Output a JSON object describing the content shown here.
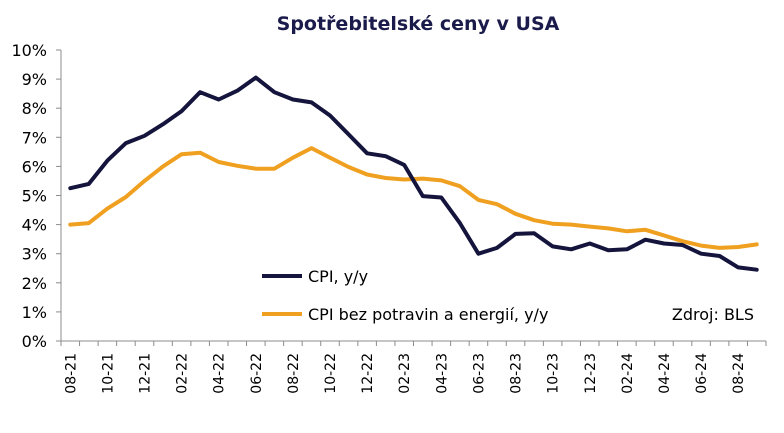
{
  "chart_data": {
    "type": "line",
    "title": "Spotřebitelské ceny v USA",
    "source": "Zdroj: BLS",
    "xlabel": "",
    "ylabel": "",
    "ylim": [
      0,
      10
    ],
    "yticks": [
      "0%",
      "1%",
      "2%",
      "3%",
      "4%",
      "5%",
      "6%",
      "7%",
      "8%",
      "9%",
      "10%"
    ],
    "x": [
      "08-21",
      "09-21",
      "10-21",
      "11-21",
      "12-21",
      "01-22",
      "02-22",
      "03-22",
      "04-22",
      "05-22",
      "06-22",
      "07-22",
      "08-22",
      "09-22",
      "10-22",
      "11-22",
      "12-22",
      "01-23",
      "02-23",
      "03-23",
      "04-23",
      "05-23",
      "06-23",
      "07-23",
      "08-23",
      "09-23",
      "10-23",
      "11-23",
      "12-23",
      "01-24",
      "02-24",
      "03-24",
      "04-24",
      "05-24",
      "06-24",
      "07-24",
      "08-24",
      "09-24"
    ],
    "xtick_labels": [
      "08-21",
      "10-21",
      "12-21",
      "02-22",
      "04-22",
      "06-22",
      "08-22",
      "10-22",
      "12-22",
      "02-23",
      "04-23",
      "06-23",
      "08-23",
      "10-23",
      "12-23",
      "02-24",
      "04-24",
      "06-24",
      "08-24"
    ],
    "legend_position": "bottom-left",
    "grid": false,
    "series": [
      {
        "name": "CPI, y/y",
        "color": "#14143c",
        "values": [
          5.25,
          5.4,
          6.2,
          6.8,
          7.05,
          7.45,
          7.9,
          8.55,
          8.3,
          8.6,
          9.05,
          8.55,
          8.3,
          8.2,
          7.75,
          7.1,
          6.45,
          6.35,
          6.05,
          4.98,
          4.93,
          4.05,
          3.0,
          3.2,
          3.68,
          3.7,
          3.25,
          3.15,
          3.35,
          3.12,
          3.15,
          3.48,
          3.35,
          3.3,
          3.0,
          2.92,
          2.53,
          2.45
        ]
      },
      {
        "name": "CPI bez potravin a energií, y/y",
        "color": "#f0a020",
        "values": [
          4.0,
          4.05,
          4.55,
          4.95,
          5.5,
          6.0,
          6.42,
          6.47,
          6.15,
          6.02,
          5.92,
          5.92,
          6.3,
          6.63,
          6.3,
          5.98,
          5.72,
          5.6,
          5.55,
          5.58,
          5.52,
          5.32,
          4.85,
          4.7,
          4.37,
          4.15,
          4.03,
          4.0,
          3.93,
          3.87,
          3.77,
          3.82,
          3.63,
          3.43,
          3.28,
          3.2,
          3.23,
          3.32
        ]
      }
    ]
  }
}
